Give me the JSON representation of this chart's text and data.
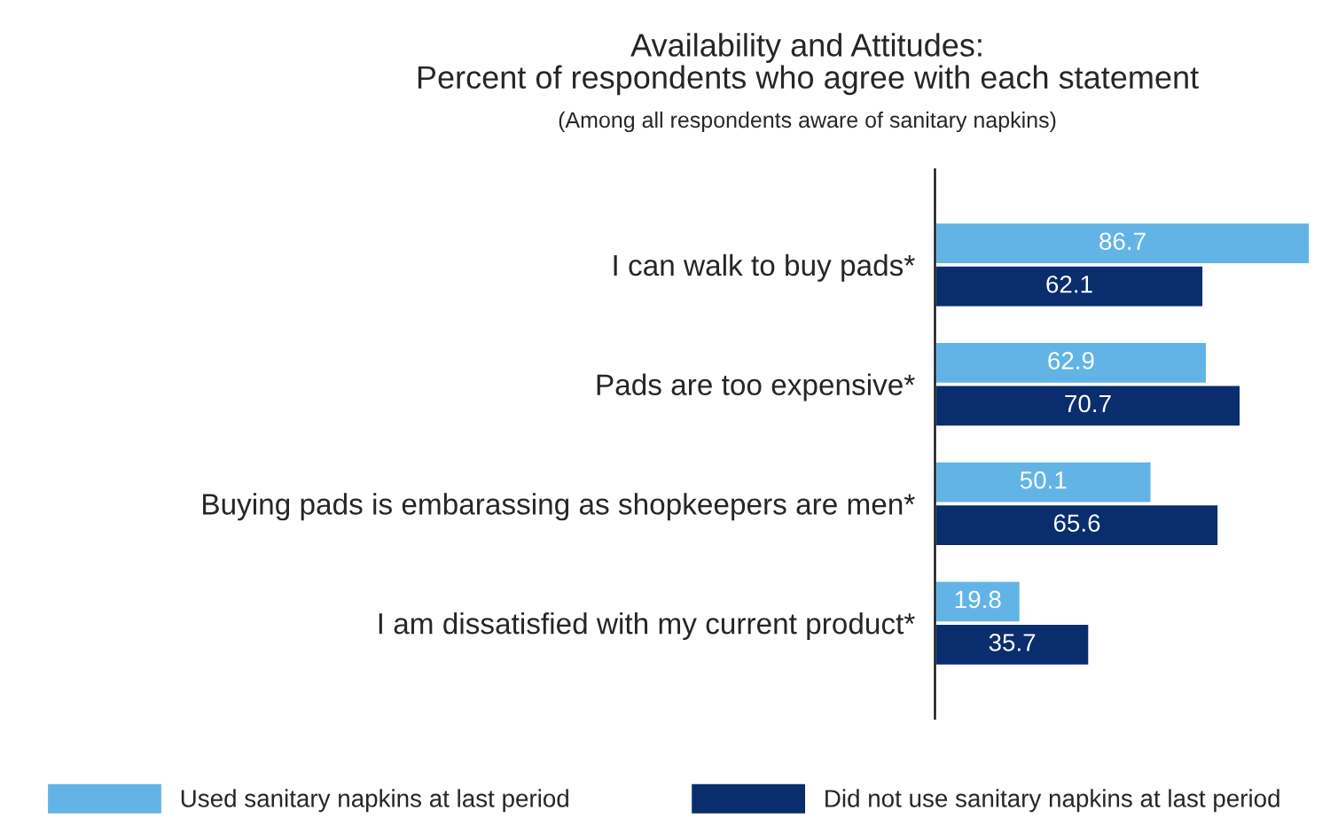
{
  "chart_data": {
    "type": "bar",
    "orientation": "horizontal",
    "title": "Availability and Attitudes:\nPercent of respondents who agree with each statement",
    "subtitle": "(Among all respondents aware of sanitary napkins)",
    "categories": [
      "I can walk to buy pads*",
      "Pads are too expensive*",
      "Buying pads is embarassing as shopkeepers are men*",
      "I am dissatisfied with my current product*"
    ],
    "series": [
      {
        "name": "Used sanitary napkins at last period",
        "color": "#62b4e6",
        "values": [
          86.7,
          62.9,
          50.1,
          19.8
        ]
      },
      {
        "name": "Did not use sanitary napkins at last period",
        "color": "#0a2d6e",
        "values": [
          62.1,
          70.7,
          65.6,
          35.7
        ]
      }
    ],
    "data_labels": true,
    "legend": "bottom",
    "grid": false
  }
}
